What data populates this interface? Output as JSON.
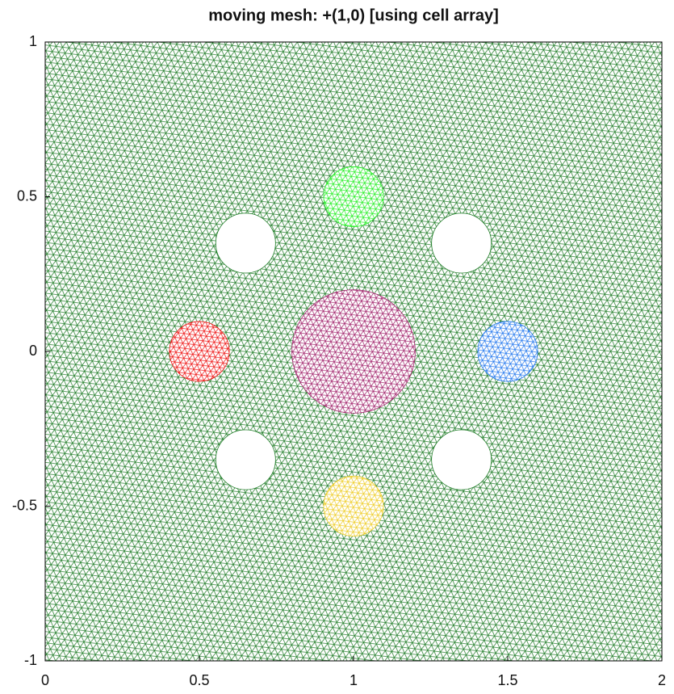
{
  "chart_data": {
    "type": "mesh",
    "title": "moving mesh: +(1,0) [using cell array]",
    "xlim": [
      0,
      2
    ],
    "ylim": [
      -1,
      1
    ],
    "xticks": [
      0,
      0.5,
      1,
      1.5,
      2
    ],
    "yticks": [
      -1,
      -0.5,
      0,
      0.5,
      1
    ],
    "mesh_color": "#1b7a23",
    "holes": [
      {
        "x": 0.65,
        "y": 0.35,
        "r": 0.097
      },
      {
        "x": 1.35,
        "y": 0.35,
        "r": 0.097
      },
      {
        "x": 0.65,
        "y": -0.35,
        "r": 0.097
      },
      {
        "x": 1.35,
        "y": -0.35,
        "r": 0.097
      }
    ],
    "subdomains": [
      {
        "x": 1,
        "y": 0.5,
        "r": 0.097,
        "color": "#22ee22"
      },
      {
        "x": 0.5,
        "y": 0,
        "r": 0.097,
        "color": "#ee1111"
      },
      {
        "x": 1.5,
        "y": 0,
        "r": 0.097,
        "color": "#2277ee"
      },
      {
        "x": 1,
        "y": -0.5,
        "r": 0.097,
        "color": "#eecc22"
      },
      {
        "x": 1,
        "y": 0,
        "r": 0.2,
        "color": "#a0206a"
      }
    ]
  }
}
